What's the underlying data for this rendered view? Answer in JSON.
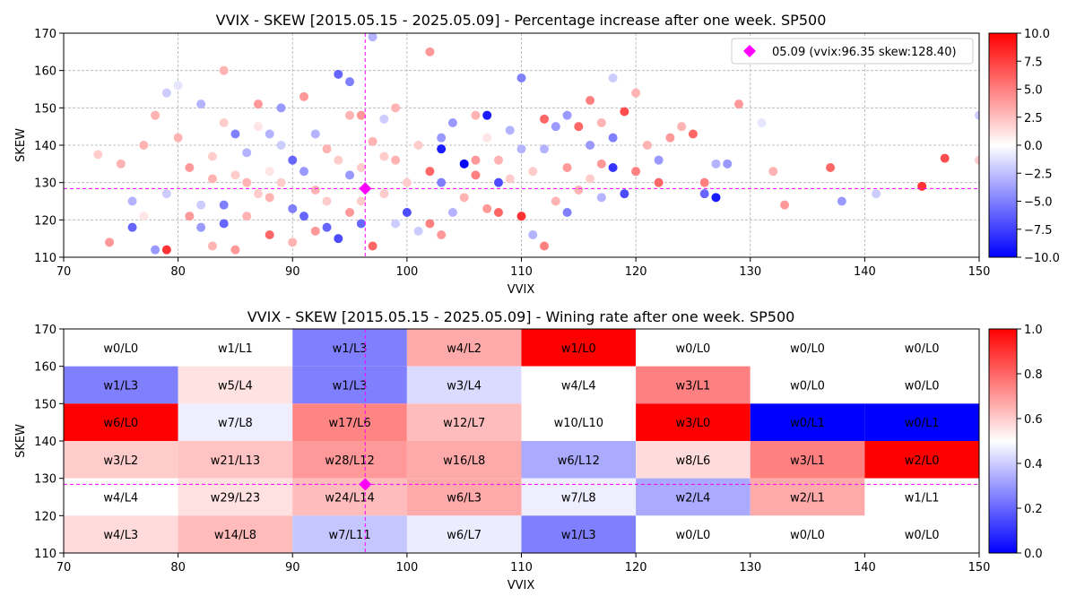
{
  "colors": {
    "positive": "#ff0000",
    "neutral": "#ffffff",
    "negative": "#0000ff",
    "marker": "#ff00ff",
    "grid": "#b0b0b0"
  },
  "chart_data": [
    {
      "type": "scatter",
      "title": "VVIX - SKEW [2015.05.15 - 2025.05.09]  - Percentage increase after one week. SP500",
      "xlabel": "VVIX",
      "ylabel": "SKEW",
      "xlim": [
        70,
        150
      ],
      "ylim": [
        110,
        170
      ],
      "xticks": [
        "70",
        "80",
        "90",
        "100",
        "110",
        "120",
        "130",
        "140",
        "150"
      ],
      "yticks": [
        "110",
        "120",
        "130",
        "140",
        "150",
        "160",
        "170"
      ],
      "grid": true,
      "colorbar": {
        "min": -10,
        "max": 10,
        "ticks": [
          "10.0",
          "7.5",
          "5.0",
          "2.5",
          "0.0",
          "−2.5",
          "−5.0",
          "−7.5",
          "−10.0"
        ]
      },
      "legend": {
        "position": "top-right",
        "label": "05.09 (vvix:96.35 skew:128.40)"
      },
      "current_point": {
        "x": 96.35,
        "y": 128.4
      },
      "points": [
        [
          73,
          137.5,
          2
        ],
        [
          74,
          114,
          4
        ],
        [
          75,
          135,
          3
        ],
        [
          76,
          125,
          -3
        ],
        [
          76,
          118,
          -6
        ],
        [
          77,
          121,
          1
        ],
        [
          77,
          140,
          3
        ],
        [
          78,
          148,
          3
        ],
        [
          78,
          112,
          -4
        ],
        [
          79,
          112,
          8
        ],
        [
          79,
          127,
          -2
        ],
        [
          79,
          154,
          -2
        ],
        [
          80,
          142,
          3
        ],
        [
          80,
          156,
          -1
        ],
        [
          81,
          134,
          4
        ],
        [
          81,
          121,
          4
        ],
        [
          82,
          151,
          -3
        ],
        [
          82,
          124,
          -2
        ],
        [
          82,
          118,
          -4
        ],
        [
          83,
          137,
          2
        ],
        [
          83,
          131,
          3
        ],
        [
          83,
          113,
          3
        ],
        [
          84,
          146,
          2
        ],
        [
          84,
          160,
          3
        ],
        [
          84,
          124,
          -5
        ],
        [
          84,
          119,
          -6
        ],
        [
          85,
          143,
          -5
        ],
        [
          85,
          132,
          2
        ],
        [
          85,
          112,
          4
        ],
        [
          86,
          138,
          -3
        ],
        [
          86,
          130,
          3
        ],
        [
          86,
          121,
          3
        ],
        [
          87,
          151,
          4
        ],
        [
          87,
          145,
          1
        ],
        [
          87,
          127,
          2
        ],
        [
          88,
          143,
          -3
        ],
        [
          88,
          133,
          1
        ],
        [
          88,
          126,
          3
        ],
        [
          88,
          116,
          6
        ],
        [
          89,
          150,
          -4
        ],
        [
          89,
          140,
          -2
        ],
        [
          89,
          130,
          2
        ],
        [
          90,
          136,
          -6
        ],
        [
          90,
          123,
          -5
        ],
        [
          90,
          114,
          3
        ],
        [
          91,
          153,
          4
        ],
        [
          91,
          133,
          -4
        ],
        [
          91,
          121,
          -6
        ],
        [
          92,
          143,
          -3
        ],
        [
          92,
          128,
          3
        ],
        [
          92,
          117,
          4
        ],
        [
          93,
          139,
          3
        ],
        [
          93,
          125,
          2
        ],
        [
          93,
          118,
          -6
        ],
        [
          94,
          159,
          -6
        ],
        [
          94,
          136,
          2
        ],
        [
          94,
          115,
          -7
        ],
        [
          95,
          157,
          -5
        ],
        [
          95,
          148,
          3
        ],
        [
          95,
          132,
          -4
        ],
        [
          95,
          122,
          4
        ],
        [
          96,
          148,
          4
        ],
        [
          96,
          134,
          2
        ],
        [
          96,
          125,
          2
        ],
        [
          96,
          119,
          -6
        ],
        [
          97,
          169,
          -3
        ],
        [
          97,
          141,
          3
        ],
        [
          97,
          113,
          6
        ],
        [
          98,
          147,
          -2
        ],
        [
          98,
          137,
          2
        ],
        [
          98,
          127,
          2
        ],
        [
          99,
          150,
          3
        ],
        [
          99,
          136,
          3
        ],
        [
          99,
          119,
          -2
        ],
        [
          100,
          130,
          2
        ],
        [
          100,
          122,
          -7
        ],
        [
          101,
          140,
          2
        ],
        [
          101,
          117,
          -2
        ],
        [
          102,
          165,
          4
        ],
        [
          102,
          133,
          6
        ],
        [
          102,
          119,
          5
        ],
        [
          103,
          142,
          -4
        ],
        [
          103,
          139,
          -9
        ],
        [
          103,
          130,
          -5
        ],
        [
          103,
          116,
          4
        ],
        [
          104,
          146,
          -4
        ],
        [
          104,
          122,
          -3
        ],
        [
          105,
          135,
          -10
        ],
        [
          105,
          126,
          3
        ],
        [
          106,
          148,
          3
        ],
        [
          106,
          136,
          4
        ],
        [
          106,
          132,
          5
        ],
        [
          107,
          148,
          -9
        ],
        [
          107,
          142,
          1
        ],
        [
          107,
          123,
          4
        ],
        [
          108,
          136,
          3
        ],
        [
          108,
          130,
          -7
        ],
        [
          108,
          122,
          6
        ],
        [
          109,
          144,
          -3
        ],
        [
          109,
          131,
          2
        ],
        [
          110,
          158,
          -5
        ],
        [
          110,
          139,
          -3
        ],
        [
          110,
          121,
          8
        ],
        [
          111,
          133,
          2
        ],
        [
          111,
          116,
          -3
        ],
        [
          112,
          147,
          6
        ],
        [
          112,
          139,
          -3
        ],
        [
          112,
          113,
          5
        ],
        [
          113,
          145,
          -4
        ],
        [
          113,
          125,
          3
        ],
        [
          114,
          148,
          -4
        ],
        [
          114,
          134,
          4
        ],
        [
          114,
          122,
          -5
        ],
        [
          115,
          145,
          6
        ],
        [
          115,
          128,
          3
        ],
        [
          116,
          152,
          5
        ],
        [
          116,
          140,
          -4
        ],
        [
          116,
          131,
          2
        ],
        [
          117,
          146,
          3
        ],
        [
          117,
          135,
          4
        ],
        [
          117,
          126,
          -3
        ],
        [
          118,
          142,
          -5
        ],
        [
          118,
          134,
          -8
        ],
        [
          118,
          158,
          -2
        ],
        [
          119,
          149,
          7
        ],
        [
          119,
          127,
          -7
        ],
        [
          120,
          154,
          3
        ],
        [
          120,
          133,
          5
        ],
        [
          121,
          140,
          3
        ],
        [
          122,
          136,
          -4
        ],
        [
          122,
          130,
          6
        ],
        [
          123,
          142,
          4
        ],
        [
          124,
          145,
          3
        ],
        [
          125,
          143,
          6
        ],
        [
          126,
          130,
          5
        ],
        [
          126,
          127,
          -6
        ],
        [
          127,
          135,
          -3
        ],
        [
          127,
          126,
          -9
        ],
        [
          128,
          135,
          -4
        ],
        [
          129,
          151,
          4
        ],
        [
          131,
          146,
          -1
        ],
        [
          132,
          133,
          3
        ],
        [
          133,
          124,
          4
        ],
        [
          137,
          134,
          6
        ],
        [
          138,
          125,
          -4
        ],
        [
          141,
          127,
          -2
        ],
        [
          145,
          129,
          8
        ],
        [
          147,
          136.5,
          7
        ],
        [
          150,
          148,
          -2
        ],
        [
          150,
          136,
          2
        ]
      ]
    },
    {
      "type": "heatmap",
      "title": "VVIX - SKEW [2015.05.15 - 2025.05.09]  - Wining rate after one week. SP500",
      "xlabel": "VVIX",
      "ylabel": "SKEW",
      "xlim": [
        70,
        150
      ],
      "ylim": [
        110,
        170
      ],
      "x_bins": [
        70,
        80,
        90,
        100,
        110,
        120,
        130,
        140,
        150
      ],
      "y_bins": [
        110,
        120,
        130,
        140,
        150,
        160,
        170
      ],
      "xticks": [
        "70",
        "80",
        "90",
        "100",
        "110",
        "120",
        "130",
        "140",
        "150"
      ],
      "yticks": [
        "110",
        "120",
        "130",
        "140",
        "150",
        "160",
        "170"
      ],
      "colorbar": {
        "min": 0,
        "max": 1,
        "ticks": [
          "1.0",
          "0.8",
          "0.6",
          "0.4",
          "0.2",
          "0.0"
        ]
      },
      "current_point": {
        "x": 96.35,
        "y": 128.4
      },
      "rows": [
        {
          "y_range": [
            160,
            170
          ],
          "cells": [
            {
              "label": "w0/L0",
              "rate": 0.5
            },
            {
              "label": "w1/L1",
              "rate": 0.5
            },
            {
              "label": "w1/L3",
              "rate": 0.25
            },
            {
              "label": "w4/L2",
              "rate": 0.667
            },
            {
              "label": "w1/L0",
              "rate": 1.0
            },
            {
              "label": "w0/L0",
              "rate": 0.5
            },
            {
              "label": "w0/L0",
              "rate": 0.5
            },
            {
              "label": "w0/L0",
              "rate": 0.5
            }
          ]
        },
        {
          "y_range": [
            150,
            160
          ],
          "cells": [
            {
              "label": "w1/L3",
              "rate": 0.25
            },
            {
              "label": "w5/L4",
              "rate": 0.556
            },
            {
              "label": "w1/L3",
              "rate": 0.25
            },
            {
              "label": "w3/L4",
              "rate": 0.429
            },
            {
              "label": "w4/L4",
              "rate": 0.5
            },
            {
              "label": "w3/L1",
              "rate": 0.75
            },
            {
              "label": "w0/L0",
              "rate": 0.5
            },
            {
              "label": "w0/L0",
              "rate": 0.5
            }
          ]
        },
        {
          "y_range": [
            140,
            150
          ],
          "cells": [
            {
              "label": "w6/L0",
              "rate": 1.0
            },
            {
              "label": "w7/L8",
              "rate": 0.467
            },
            {
              "label": "w17/L6",
              "rate": 0.739
            },
            {
              "label": "w12/L7",
              "rate": 0.632
            },
            {
              "label": "w10/L10",
              "rate": 0.5
            },
            {
              "label": "w3/L0",
              "rate": 1.0
            },
            {
              "label": "w0/L1",
              "rate": 0.0
            },
            {
              "label": "w0/L1",
              "rate": 0.0
            }
          ]
        },
        {
          "y_range": [
            130,
            140
          ],
          "cells": [
            {
              "label": "w3/L2",
              "rate": 0.6
            },
            {
              "label": "w21/L13",
              "rate": 0.618
            },
            {
              "label": "w28/L12",
              "rate": 0.7
            },
            {
              "label": "w16/L8",
              "rate": 0.667
            },
            {
              "label": "w6/L12",
              "rate": 0.333
            },
            {
              "label": "w8/L6",
              "rate": 0.571
            },
            {
              "label": "w3/L1",
              "rate": 0.75
            },
            {
              "label": "w2/L0",
              "rate": 1.0
            }
          ]
        },
        {
          "y_range": [
            120,
            130
          ],
          "cells": [
            {
              "label": "w4/L4",
              "rate": 0.5
            },
            {
              "label": "w29/L23",
              "rate": 0.558
            },
            {
              "label": "w24/L14",
              "rate": 0.632
            },
            {
              "label": "w6/L3",
              "rate": 0.667
            },
            {
              "label": "w7/L8",
              "rate": 0.467
            },
            {
              "label": "w2/L4",
              "rate": 0.333
            },
            {
              "label": "w2/L1",
              "rate": 0.667
            },
            {
              "label": "w1/L1",
              "rate": 0.5
            }
          ]
        },
        {
          "y_range": [
            110,
            120
          ],
          "cells": [
            {
              "label": "w4/L3",
              "rate": 0.571
            },
            {
              "label": "w14/L8",
              "rate": 0.636
            },
            {
              "label": "w7/L11",
              "rate": 0.389
            },
            {
              "label": "w6/L7",
              "rate": 0.462
            },
            {
              "label": "w1/L3",
              "rate": 0.25
            },
            {
              "label": "w0/L0",
              "rate": 0.5
            },
            {
              "label": "w0/L0",
              "rate": 0.5
            },
            {
              "label": "w0/L0",
              "rate": 0.5
            }
          ]
        }
      ]
    }
  ]
}
